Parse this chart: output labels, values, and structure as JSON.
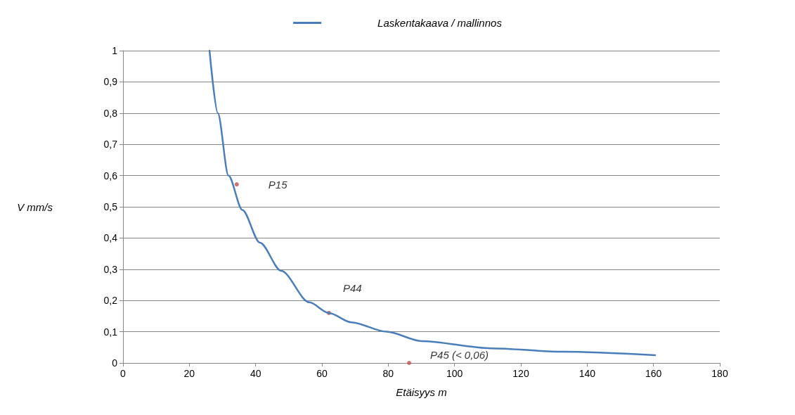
{
  "chart_data": {
    "type": "line",
    "xlabel": "Etäisyys m",
    "ylabel": "V mm/s",
    "xlim": [
      0,
      180
    ],
    "xticks": [
      0,
      20,
      40,
      60,
      80,
      100,
      120,
      140,
      160,
      180
    ],
    "ylim": [
      0,
      1
    ],
    "yticks": [
      0,
      {
        "value": 0.1,
        "label": "0,1"
      },
      {
        "value": 0.2,
        "label": "0,2"
      },
      {
        "value": 0.3,
        "label": "0,3"
      },
      {
        "value": 0.4,
        "label": "0,4"
      },
      {
        "value": 0.5,
        "label": "0,5"
      },
      {
        "value": 0.6,
        "label": "0,6"
      },
      {
        "value": 0.7,
        "label": "0,7"
      },
      {
        "value": 0.8,
        "label": "0,8"
      },
      {
        "value": 0.9,
        "label": "0,9"
      },
      1
    ],
    "grid": "y",
    "legend": "top",
    "marker": "none",
    "series": [
      {
        "name": "Laskentakaava / mallinnos",
        "color": "#4a7ebb",
        "x": [
          26.1,
          28.6,
          31.8,
          36,
          41.3,
          47.7,
          56.2,
          62.1,
          68.9,
          79.5,
          90.1,
          111,
          132.5,
          160.5
        ],
        "values": [
          1,
          0.8,
          0.6,
          0.49,
          0.385,
          0.295,
          0.194,
          0.16,
          0.13,
          0.1,
          0.07,
          0.047,
          0.036,
          0.025
        ]
      },
      {
        "type": "scatter",
        "color": "#c0504d",
        "x": [
          34.3,
          62.1,
          86.3
        ],
        "values": [
          0.572,
          0.16,
          0
        ]
      }
    ],
    "annotations": [
      {
        "text": "P15",
        "x": 34.3,
        "y": 0.572
      },
      {
        "text": "P44",
        "x": 62.1,
        "y": 0.16
      },
      {
        "text": "P45 (< 0,06)",
        "x": 86.3,
        "y": 0
      }
    ]
  }
}
